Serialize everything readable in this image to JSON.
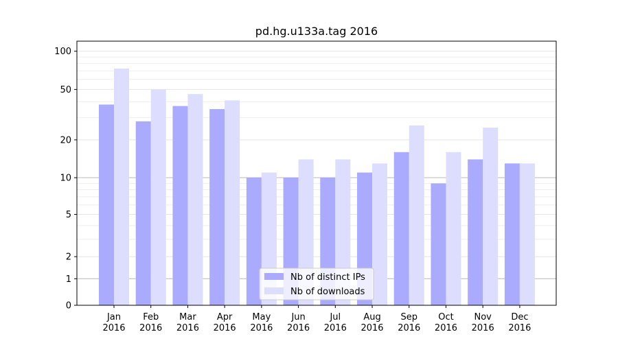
{
  "chart_data": {
    "type": "bar",
    "title": "pd.hg.u133a.tag 2016",
    "xlabel": "",
    "ylabel": "",
    "y_scale": "symlog",
    "ylim": [
      0,
      120
    ],
    "y_ticks": [
      0,
      1,
      2,
      5,
      10,
      20,
      50,
      100
    ],
    "y_tick_labels": [
      "0",
      "1",
      "2",
      "5",
      "10",
      "20",
      "50",
      "100"
    ],
    "categories": [
      "Jan\n2016",
      "Feb\n2016",
      "Mar\n2016",
      "Apr\n2016",
      "May\n2016",
      "Jun\n2016",
      "Jul\n2016",
      "Aug\n2016",
      "Sep\n2016",
      "Oct\n2016",
      "Nov\n2016",
      "Dec\n2016"
    ],
    "category_lines": [
      [
        "Jan",
        "2016"
      ],
      [
        "Feb",
        "2016"
      ],
      [
        "Mar",
        "2016"
      ],
      [
        "Apr",
        "2016"
      ],
      [
        "May",
        "2016"
      ],
      [
        "Jun",
        "2016"
      ],
      [
        "Jul",
        "2016"
      ],
      [
        "Aug",
        "2016"
      ],
      [
        "Sep",
        "2016"
      ],
      [
        "Oct",
        "2016"
      ],
      [
        "Nov",
        "2016"
      ],
      [
        "Dec",
        "2016"
      ]
    ],
    "series": [
      {
        "name": "Nb of distinct IPs",
        "color": "#aaaaff",
        "values": [
          38,
          28,
          37,
          35,
          10,
          10,
          10,
          11,
          16,
          9,
          14,
          13
        ]
      },
      {
        "name": "Nb of downloads",
        "color": "#ddddff",
        "values": [
          73,
          50,
          46,
          41,
          11,
          14,
          14,
          13,
          26,
          16,
          25,
          13
        ]
      }
    ],
    "legend_position": "lower center",
    "grid": true
  }
}
